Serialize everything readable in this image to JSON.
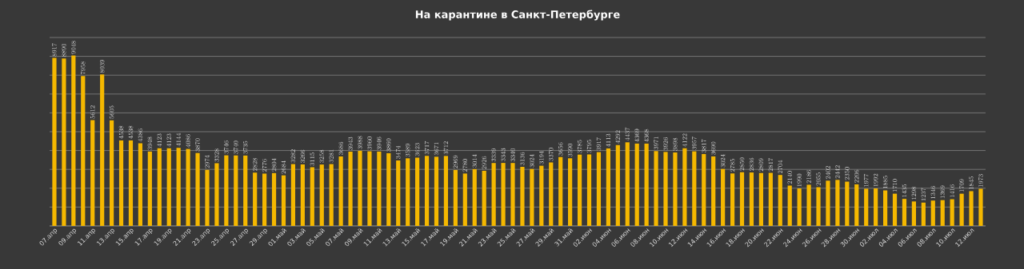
{
  "chart_data": {
    "type": "bar",
    "title": "На карантине в Санкт-Петербурге",
    "categories": [
      "07.апр",
      null,
      "09.апр",
      null,
      "11.апр",
      null,
      "13.апр",
      null,
      "15.апр",
      null,
      "17.апр",
      null,
      "19.апр",
      null,
      "21.апр",
      null,
      "23.апр",
      null,
      "25.апр",
      null,
      "27.апр",
      null,
      "29.апр",
      null,
      "01.май",
      null,
      "03.май",
      null,
      "05.май",
      null,
      "07.май",
      null,
      "09.май",
      null,
      "11.май",
      null,
      "13.май",
      null,
      "15.май",
      null,
      "17.май",
      null,
      "19.май",
      null,
      "21.май",
      null,
      "23.май",
      null,
      "25.май",
      null,
      "27.май",
      null,
      "29.май",
      null,
      "31.май",
      null,
      "02.июн",
      null,
      "04.июн",
      null,
      "06.июн",
      null,
      "08.июн",
      null,
      "10.июн",
      null,
      "12.июн",
      null,
      "14.июн",
      null,
      "16.июн",
      null,
      "18.июн",
      null,
      "20.июн",
      null,
      "22.июн",
      null,
      "24.июн",
      null,
      "26.июн",
      null,
      "28.июн",
      null,
      "30.июн",
      null,
      "02.июл",
      null,
      "04.июл",
      null,
      "06.июл",
      null,
      "08.июл",
      null,
      "10.июл",
      null,
      "12.июл",
      null
    ],
    "values": [
      8917,
      8890,
      9048,
      7958,
      5612,
      8039,
      5605,
      4538,
      4538,
      4386,
      3948,
      4123,
      4123,
      4144,
      4086,
      3870,
      2974,
      3328,
      3746,
      3740,
      3735,
      2828,
      2776,
      2804,
      2684,
      3282,
      3266,
      3115,
      3258,
      3281,
      3686,
      3943,
      3988,
      3960,
      3946,
      3860,
      3474,
      3589,
      3623,
      3717,
      3671,
      3712,
      2969,
      2780,
      3014,
      2926,
      3339,
      3343,
      3340,
      3136,
      3024,
      3194,
      3370,
      3656,
      3590,
      3785,
      3795,
      3917,
      4113,
      4292,
      4437,
      4369,
      4368,
      3971,
      3926,
      3898,
      4122,
      3957,
      3817,
      3690,
      3024,
      2785,
      2850,
      2836,
      2809,
      2817,
      2704,
      2140,
      1990,
      2186,
      2055,
      2402,
      2442,
      2350,
      2206,
      1977,
      1992,
      1885,
      1710,
      1435,
      1298,
      1237,
      1346,
      1369,
      1416,
      1709,
      1845,
      1973
    ],
    "color": "#f5b800",
    "ylim": [
      0,
      10000
    ],
    "yticks": [
      {
        "value": 0,
        "label": null
      },
      {
        "value": 1000,
        "label": null
      },
      {
        "value": 2000,
        "label": null
      },
      {
        "value": 3000,
        "label": null
      },
      {
        "value": 4000,
        "label": null
      },
      {
        "value": 5000,
        "label": null
      },
      {
        "value": 6000,
        "label": null
      },
      {
        "value": 7000,
        "label": null
      },
      {
        "value": 8000,
        "label": null
      },
      {
        "value": 9000,
        "label": null
      },
      {
        "value": 10000,
        "label": null
      }
    ],
    "grid": "y",
    "tick_labels": "x",
    "data_labels": true
  }
}
